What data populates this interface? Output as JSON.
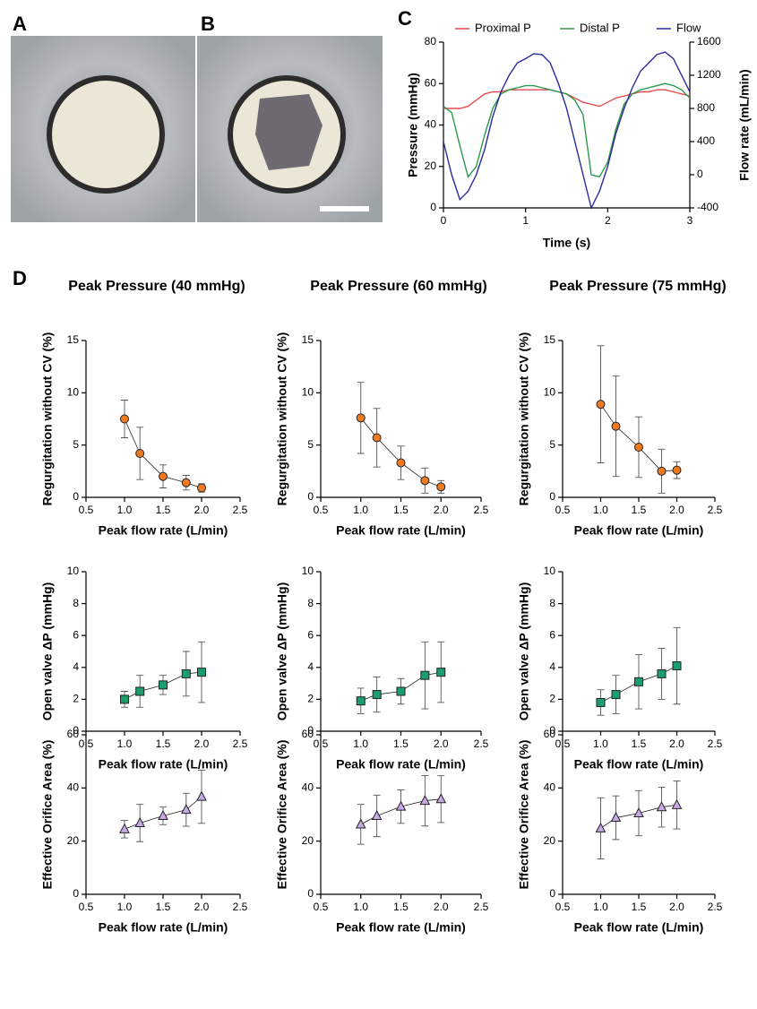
{
  "panel_labels": [
    "A",
    "B",
    "C",
    "D"
  ],
  "column_titles": [
    "Peak Pressure (40 mmHg)",
    "Peak Pressure (60 mmHg)",
    "Peak Pressure (75 mmHg)"
  ],
  "chart_data": [
    {
      "type": "line",
      "xlabel": "Time (s)",
      "ylabel": "Pressure (mmHg)",
      "y2label": "Flow rate (mL/min)",
      "legend": "top",
      "x": [
        0,
        0.1,
        0.2,
        0.3,
        0.4,
        0.5,
        0.6,
        0.7,
        0.8,
        0.9,
        1,
        1.1,
        1.2,
        1.3,
        1.4,
        1.5,
        1.6,
        1.7,
        1.8,
        1.9,
        2,
        2.1,
        2.2,
        2.3,
        2.4,
        2.5,
        2.6,
        2.7,
        2.8,
        2.9,
        3
      ],
      "xlim": [
        0,
        3
      ],
      "xticks": [
        0,
        1,
        2,
        3
      ],
      "ylim": [
        0,
        80
      ],
      "yticks": [
        0,
        20,
        40,
        60,
        80
      ],
      "y2lim": [
        -400,
        1600
      ],
      "y2ticks": [
        -400,
        0,
        400,
        800,
        1200,
        1600
      ],
      "series": [
        {
          "name": "Proximal P",
          "color": "#e8494c",
          "values": [
            48,
            48,
            48,
            49,
            52,
            55,
            56,
            56,
            57,
            57,
            57,
            57,
            57,
            57,
            56,
            55,
            53,
            51,
            50,
            49,
            51,
            53,
            54,
            55,
            56,
            56,
            57,
            57,
            56,
            55,
            54
          ]
        },
        {
          "name": "Distal P",
          "color": "#2a9a4a",
          "values": [
            49,
            46,
            30,
            15,
            20,
            35,
            48,
            55,
            57,
            58,
            59,
            59,
            58,
            57,
            56,
            55,
            52,
            45,
            16,
            15,
            22,
            38,
            50,
            55,
            57,
            58,
            59,
            60,
            59,
            57,
            53
          ]
        },
        {
          "name": "Flow",
          "color": "#2a2a9e",
          "axis": "y2",
          "values": [
            400,
            0,
            -300,
            -200,
            0,
            300,
            700,
            1000,
            1200,
            1350,
            1400,
            1460,
            1450,
            1350,
            1100,
            800,
            400,
            0,
            -400,
            -200,
            100,
            500,
            800,
            1050,
            1250,
            1350,
            1450,
            1480,
            1400,
            1200,
            1000
          ]
        }
      ]
    },
    {
      "type": "scatter",
      "marker": "circle",
      "color": "#f07a1f",
      "xlabel": "Peak flow rate (L/min)",
      "ylabel": "Regurgitation without CV (%)",
      "x": [
        1,
        1.2,
        1.5,
        1.8,
        2
      ],
      "values": [
        7.5,
        4.2,
        2.0,
        1.4,
        0.9
      ],
      "errors": [
        1.8,
        2.5,
        1.1,
        0.7,
        0.4
      ],
      "xlim": [
        0.5,
        2.5
      ],
      "xticks": [
        0.5,
        {
          "value": 1,
          "label": "1.0"
        },
        1.5,
        {
          "value": 2,
          "label": "2.0"
        },
        2.5
      ],
      "ylim": [
        0,
        15
      ],
      "yticks": [
        0,
        5,
        10,
        15
      ]
    },
    {
      "type": "scatter",
      "marker": "circle",
      "color": "#f07a1f",
      "xlabel": "Peak flow rate (L/min)",
      "ylabel": "Regurgitation without CV (%)",
      "x": [
        1,
        1.2,
        1.5,
        1.8,
        2
      ],
      "values": [
        7.6,
        5.7,
        3.3,
        1.6,
        1.0
      ],
      "errors": [
        3.4,
        2.8,
        1.6,
        1.2,
        0.6
      ],
      "xlim": [
        0.5,
        2.5
      ],
      "xticks": [
        0.5,
        {
          "value": 1,
          "label": "1.0"
        },
        1.5,
        {
          "value": 2,
          "label": "2.0"
        },
        2.5
      ],
      "ylim": [
        0,
        15
      ],
      "yticks": [
        0,
        5,
        10,
        15
      ]
    },
    {
      "type": "scatter",
      "marker": "circle",
      "color": "#f07a1f",
      "xlabel": "Peak flow rate (L/min)",
      "ylabel": "Regurgitation without CV (%)",
      "x": [
        1,
        1.2,
        1.5,
        1.8,
        2
      ],
      "values": [
        8.9,
        6.8,
        4.8,
        2.5,
        2.6
      ],
      "errors": [
        5.6,
        4.8,
        2.9,
        2.1,
        0.8
      ],
      "xlim": [
        0.5,
        2.5
      ],
      "xticks": [
        0.5,
        {
          "value": 1,
          "label": "1.0"
        },
        1.5,
        {
          "value": 2,
          "label": "2.0"
        },
        2.5
      ],
      "ylim": [
        0,
        15
      ],
      "yticks": [
        0,
        5,
        10,
        15
      ]
    },
    {
      "type": "scatter",
      "marker": "square",
      "color": "#1a9e6e",
      "xlabel": "Peak flow rate (L/min)",
      "ylabel": "Open valve ΔP (mmHg)",
      "x": [
        1,
        1.2,
        1.5,
        1.8,
        2
      ],
      "values": [
        2.0,
        2.5,
        2.9,
        3.6,
        3.7
      ],
      "errors": [
        0.5,
        1.0,
        0.6,
        1.4,
        1.9
      ],
      "xlim": [
        0.5,
        2.5
      ],
      "xticks": [
        0.5,
        {
          "value": 1,
          "label": "1.0"
        },
        1.5,
        {
          "value": 2,
          "label": "2.0"
        },
        2.5
      ],
      "ylim": [
        0,
        10
      ],
      "yticks": [
        0,
        2,
        4,
        6,
        8,
        10
      ]
    },
    {
      "type": "scatter",
      "marker": "square",
      "color": "#1a9e6e",
      "xlabel": "Peak flow rate (L/min)",
      "ylabel": "Open valve ΔP (mmHg)",
      "x": [
        1,
        1.2,
        1.5,
        1.8,
        2
      ],
      "values": [
        1.9,
        2.3,
        2.5,
        3.5,
        3.7
      ],
      "errors": [
        0.8,
        1.1,
        0.8,
        2.1,
        1.9
      ],
      "xlim": [
        0.5,
        2.5
      ],
      "xticks": [
        0.5,
        {
          "value": 1,
          "label": "1.0"
        },
        1.5,
        {
          "value": 2,
          "label": "2.0"
        },
        2.5
      ],
      "ylim": [
        0,
        10
      ],
      "yticks": [
        0,
        2,
        4,
        6,
        8,
        10
      ]
    },
    {
      "type": "scatter",
      "marker": "square",
      "color": "#1a9e6e",
      "xlabel": "Peak flow rate (L/min)",
      "ylabel": "Open valve ΔP (mmHg)",
      "x": [
        1,
        1.2,
        1.5,
        1.8,
        2
      ],
      "values": [
        1.8,
        2.3,
        3.1,
        3.6,
        4.1
      ],
      "errors": [
        0.8,
        1.2,
        1.7,
        1.6,
        2.4
      ],
      "xlim": [
        0.5,
        2.5
      ],
      "xticks": [
        0.5,
        {
          "value": 1,
          "label": "1.0"
        },
        1.5,
        {
          "value": 2,
          "label": "2.0"
        },
        2.5
      ],
      "ylim": [
        0,
        10
      ],
      "yticks": [
        0,
        2,
        4,
        6,
        8,
        10
      ]
    },
    {
      "type": "scatter",
      "marker": "triangle",
      "color": "#c9a8e6",
      "xlabel": "Peak flow rate (L/min)",
      "ylabel": "Effective Orifice Area (%)",
      "x": [
        1,
        1.2,
        1.5,
        1.8,
        2
      ],
      "values": [
        24.5,
        26.8,
        29.5,
        31.8,
        36.7
      ],
      "errors": [
        3.3,
        7.0,
        3.3,
        6.2,
        10.0
      ],
      "xlim": [
        0.5,
        2.5
      ],
      "xticks": [
        0.5,
        {
          "value": 1,
          "label": "1.0"
        },
        1.5,
        {
          "value": 2,
          "label": "2.0"
        },
        2.5
      ],
      "ylim": [
        0,
        60
      ],
      "yticks": [
        0,
        20,
        40,
        60
      ]
    },
    {
      "type": "scatter",
      "marker": "triangle",
      "color": "#c9a8e6",
      "xlabel": "Peak flow rate (L/min)",
      "ylabel": "Effective Orifice Area (%)",
      "x": [
        1,
        1.2,
        1.5,
        1.8,
        2
      ],
      "values": [
        26.3,
        29.5,
        33.0,
        35.2,
        35.8
      ],
      "errors": [
        7.5,
        7.8,
        6.3,
        9.5,
        8.8
      ],
      "xlim": [
        0.5,
        2.5
      ],
      "xticks": [
        0.5,
        {
          "value": 1,
          "label": "1.0"
        },
        1.5,
        {
          "value": 2,
          "label": "2.0"
        },
        2.5
      ],
      "ylim": [
        0,
        60
      ],
      "yticks": [
        0,
        20,
        40,
        60
      ]
    },
    {
      "type": "scatter",
      "marker": "triangle",
      "color": "#c9a8e6",
      "xlabel": "Peak flow rate (L/min)",
      "ylabel": "Effective Orifice Area (%)",
      "x": [
        1,
        1.2,
        1.5,
        1.8,
        2
      ],
      "values": [
        24.8,
        28.8,
        30.5,
        32.8,
        33.6
      ],
      "errors": [
        11.5,
        8.2,
        8.5,
        7.5,
        9.0
      ],
      "xlim": [
        0.5,
        2.5
      ],
      "xticks": [
        0.5,
        {
          "value": 1,
          "label": "1.0"
        },
        1.5,
        {
          "value": 2,
          "label": "2.0"
        },
        2.5
      ],
      "ylim": [
        0,
        60
      ],
      "yticks": [
        0,
        20,
        40,
        60
      ]
    }
  ]
}
